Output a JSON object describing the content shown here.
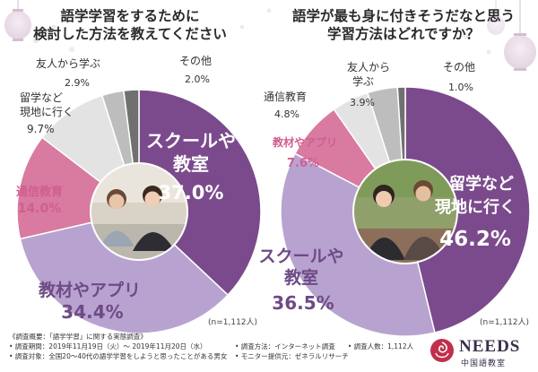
{
  "left": {
    "title_line1": "語学学習をするために",
    "title_line2": "検討した方法を教えてください",
    "note": "(n=1,112人)"
  },
  "right": {
    "title_line1": "語学が最も身に付きそうだなと思う",
    "title_line2": "学習方法はどれですか？",
    "note": "(n=1,112人)"
  },
  "chart_data": [
    {
      "type": "pie",
      "title": "語学学習をするために検討した方法を教えてください",
      "unit": "%",
      "slices": [
        {
          "label": "スクールや教室",
          "value": 37.0,
          "color": "#7b4a8c"
        },
        {
          "label": "教材やアプリ",
          "value": 34.4,
          "color": "#b8a3d0"
        },
        {
          "label": "通信教育",
          "value": 14.0,
          "color": "#d97aa0"
        },
        {
          "label": "留学など現地に行く",
          "value": 9.7,
          "color": "#e3e3e3"
        },
        {
          "label": "友人から学ぶ",
          "value": 2.9,
          "color": "#bdbdbd"
        },
        {
          "label": "その他",
          "value": 2.0,
          "color": "#707070"
        }
      ]
    },
    {
      "type": "pie",
      "title": "語学が最も身に付きそうだなと思う学習方法はどれですか？",
      "unit": "%",
      "slices": [
        {
          "label": "留学など現地に行く",
          "value": 46.2,
          "color": "#7b4a8c"
        },
        {
          "label": "スクールや教室",
          "value": 36.5,
          "color": "#b8a3d0"
        },
        {
          "label": "教材やアプリ",
          "value": 7.6,
          "color": "#d97aa0"
        },
        {
          "label": "通信教育",
          "value": 4.8,
          "color": "#e3e3e3"
        },
        {
          "label": "友人から学ぶ",
          "value": 3.9,
          "color": "#bdbdbd"
        },
        {
          "label": "その他",
          "value": 1.0,
          "color": "#707070"
        }
      ]
    }
  ],
  "labels": {
    "left": {
      "school": {
        "l1": "スクールや",
        "l2": "教室",
        "pct": "37.0%"
      },
      "app": {
        "l1": "教材やアプリ",
        "pct": "34.4%"
      },
      "corres": {
        "l1": "通信教育",
        "pct": "14.0%"
      },
      "abroad": {
        "l1": "留学など",
        "l2": "現地に行く",
        "pct": "9.7%"
      },
      "friend": {
        "l1": "友人から学ぶ",
        "pct": "2.9%"
      },
      "other": {
        "l1": "その他",
        "pct": "2.0%"
      }
    },
    "right": {
      "abroad": {
        "l1": "留学など",
        "l2": "現地に行く",
        "pct": "46.2%"
      },
      "school": {
        "l1": "スクールや",
        "l2": "教室",
        "pct": "36.5%"
      },
      "app": {
        "l1": "教材やアプリ",
        "pct": "7.6%"
      },
      "corres": {
        "l1": "通信教育",
        "pct": "4.8%"
      },
      "friend": {
        "l1": "友人から",
        "l2": "学ぶ",
        "pct": "3.9%"
      },
      "other": {
        "l1": "その他",
        "pct": "1.0%"
      }
    }
  },
  "footer": {
    "line1": "《調査概要：「語学学習」に関する実態調査》",
    "line2": "• 調査期間：2019年11月19日（火）～ 2019年11月20日（水）",
    "line3": "• 調査対象：全国20～40代の語学学習をしようと思ったことがある男女",
    "method": "• 調査方法：インターネット調査",
    "count": "• 調査人数：1,112人",
    "provider": "• モニター提供元：ゼネラルリサーチ"
  },
  "logo": {
    "name": "NEEDS",
    "sub": "中国語教室"
  },
  "colors": {
    "purple_dark": "#7b4a8c",
    "lavender": "#b8a3d0",
    "pink": "#d97aa0",
    "light_gray": "#e3e3e3",
    "mid_gray": "#bdbdbd",
    "dark_gray": "#707070"
  }
}
